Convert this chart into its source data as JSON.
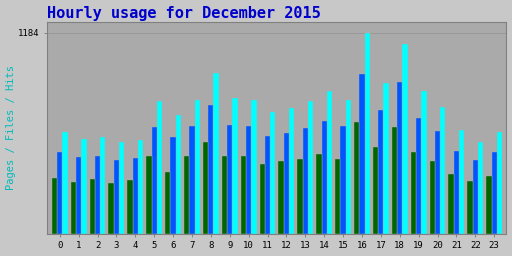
{
  "title": "Hourly usage for December 2015",
  "ylabel": "Pages / Files / Hits",
  "hours": [
    0,
    1,
    2,
    3,
    4,
    5,
    6,
    7,
    8,
    9,
    10,
    11,
    12,
    13,
    14,
    15,
    16,
    17,
    18,
    19,
    20,
    21,
    22,
    23
  ],
  "hits": [
    600,
    560,
    570,
    540,
    555,
    780,
    700,
    790,
    950,
    800,
    790,
    720,
    740,
    785,
    840,
    790,
    1184,
    890,
    1120,
    840,
    745,
    610,
    540,
    600
  ],
  "files": [
    480,
    450,
    460,
    435,
    445,
    630,
    570,
    635,
    760,
    640,
    635,
    575,
    595,
    625,
    665,
    635,
    940,
    730,
    895,
    685,
    605,
    490,
    435,
    480
  ],
  "pages": [
    330,
    305,
    325,
    300,
    315,
    460,
    365,
    460,
    540,
    460,
    460,
    410,
    430,
    440,
    470,
    440,
    660,
    510,
    630,
    480,
    430,
    350,
    310,
    340
  ],
  "ytick": 1184,
  "ymax": 1250,
  "colors": {
    "hits": "#00ffff",
    "files": "#0055ff",
    "pages": "#006600",
    "bg": "#c8c8c8",
    "plot_bg": "#aaaaaa",
    "title": "#0000cc",
    "ylabel": "#00bbbb",
    "grid": "#999999",
    "border": "#808080"
  },
  "title_fontsize": 11,
  "ylabel_fontsize": 7.5
}
